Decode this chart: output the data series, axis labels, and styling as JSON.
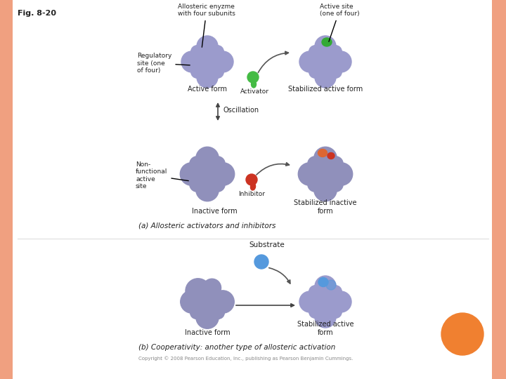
{
  "bg_color": "#fce8e0",
  "panel_color": "#ffffff",
  "border_color": "#f0a080",
  "fig_label": "Fig. 8-20",
  "enzyme_color": "#9b9bcc",
  "enzyme_color_inactive": "#9090bb",
  "active_site_color": "#33aa33",
  "inhibitor_color_r": "#cc3322",
  "inhibitor_color_o": "#dd6633",
  "activator_color": "#44bb44",
  "substrate_color": "#5599dd",
  "orange_circle_color": "#f08030",
  "arrow_color": "#555555",
  "text_color": "#222222",
  "section_a_label": "(a) Allosteric activators and inhibitors",
  "section_b_label": "(b) Cooperativity: another type of allosteric activation",
  "copyright": "Copyright © 2008 Pearson Education, Inc., publishing as Pearson Benjamin Cummings.",
  "oscillation_label": "Oscillation",
  "substrate_label": "Substrate",
  "activator_label": "Activator",
  "inhibitor_label": "Inhibitor",
  "active_form_label": "Active form",
  "stabilized_active_label": "Stabilized active form",
  "inactive_form_label": "Inactive form",
  "stabilized_inactive_label": "Stabilized inactive\nform",
  "regulatory_label": "Regulatory\nsite (one\nof four)",
  "nonfunctional_label": "Non-\nfunctional\nactive\nsite",
  "allosteric_label": "Allosteric enyzme\nwith four subunits",
  "active_site_label": "Active site\n(one of four)",
  "stabilized_active_form_b": "Stabilized active\nform",
  "inactive_form_label_b": "Inactive form"
}
